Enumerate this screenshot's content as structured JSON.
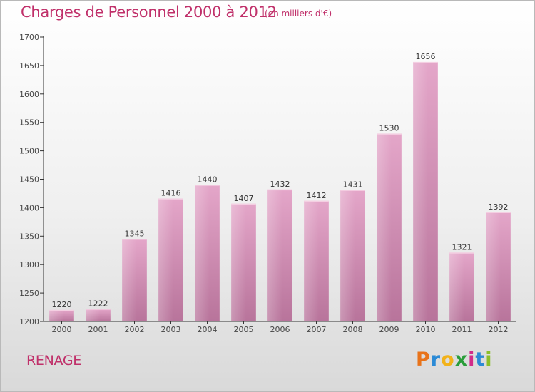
{
  "header": {
    "title": "Charges de Personnel 2000 à 2012",
    "subtitle": "(en milliers d'€)"
  },
  "footer": {
    "town": "RENAGE",
    "logo_letters": [
      "P",
      "r",
      "o",
      "x",
      "i",
      "t",
      "i"
    ],
    "logo_colors": [
      "#e8731a",
      "#2b8ad6",
      "#f2b21a",
      "#2a9d3a",
      "#d12b8a",
      "#2b8ad6",
      "#8bbf2a"
    ]
  },
  "chart_data": {
    "type": "bar",
    "categories": [
      "2000",
      "2001",
      "2002",
      "2003",
      "2004",
      "2005",
      "2006",
      "2007",
      "2008",
      "2009",
      "2010",
      "2011",
      "2012"
    ],
    "values": [
      1220,
      1222,
      1345,
      1416,
      1440,
      1407,
      1432,
      1412,
      1431,
      1530,
      1656,
      1321,
      1392
    ],
    "title": "Charges de Personnel 2000 à 2012",
    "xlabel": "",
    "ylabel": "",
    "ylim": [
      1200,
      1700
    ],
    "yticks": [
      1200,
      1250,
      1300,
      1350,
      1400,
      1450,
      1500,
      1550,
      1600,
      1650,
      1700
    ],
    "grid": false,
    "bar_color": "#d98fba"
  }
}
